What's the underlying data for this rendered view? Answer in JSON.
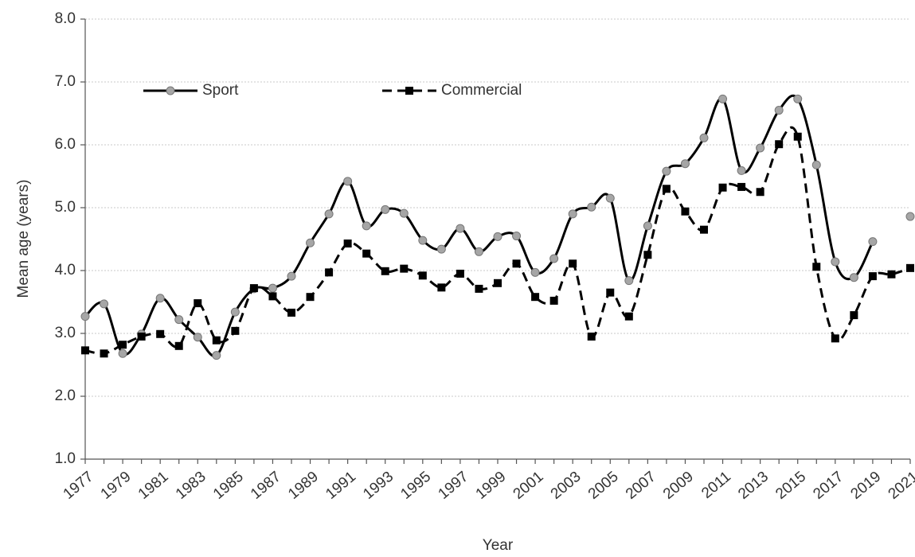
{
  "chart_data": {
    "type": "line",
    "x_label": "Year",
    "y_label": "Mean age (years)",
    "categories": [
      "1977",
      null,
      "1979",
      null,
      "1981",
      null,
      "1983",
      null,
      "1985",
      null,
      "1987",
      null,
      "1989",
      null,
      "1991",
      null,
      "1993",
      null,
      "1995",
      null,
      "1997",
      null,
      "1999",
      null,
      "2001",
      null,
      "2003",
      null,
      "2005",
      null,
      "2007",
      null,
      "2009",
      null,
      "2011",
      null,
      "2013",
      null,
      "2015",
      null,
      "2017",
      null,
      "2019",
      null,
      "2021"
    ],
    "series": [
      {
        "name": "Sport",
        "color": "#000000",
        "marker": "circle",
        "marker_color": "#a6a6a6",
        "dashed": false,
        "values": [
          3.27,
          3.47,
          2.68,
          2.99,
          3.56,
          3.22,
          2.94,
          2.65,
          3.34,
          3.71,
          3.72,
          3.91,
          4.44,
          4.9,
          5.42,
          4.71,
          4.97,
          4.91,
          4.48,
          4.34,
          4.67,
          4.3,
          4.54,
          4.55,
          3.97,
          4.19,
          4.9,
          5.01,
          5.15,
          3.84,
          4.71,
          5.58,
          5.7,
          6.11,
          6.73,
          5.59,
          5.95,
          6.55,
          6.73,
          5.68,
          4.14,
          3.89,
          4.46,
          null,
          4.86
        ]
      },
      {
        "name": "Commercial",
        "color": "#000000",
        "marker": "square",
        "marker_color": "#000000",
        "dashed": true,
        "values": [
          2.73,
          2.68,
          2.82,
          2.95,
          2.99,
          2.8,
          3.48,
          2.89,
          3.04,
          3.72,
          3.59,
          3.33,
          3.58,
          3.97,
          4.43,
          4.27,
          3.99,
          4.03,
          3.92,
          3.73,
          3.95,
          3.71,
          3.8,
          4.11,
          3.58,
          3.52,
          4.11,
          2.95,
          3.65,
          3.27,
          4.25,
          5.3,
          4.94,
          4.65,
          5.32,
          5.33,
          5.25,
          6.01,
          6.13,
          4.06,
          2.92,
          3.29,
          3.91,
          3.94,
          4.04
        ]
      }
    ],
    "ylim": [
      1,
      8
    ],
    "yticks": [
      {
        "value": 1,
        "label": "1.0"
      },
      {
        "value": 2,
        "label": "2.0"
      },
      {
        "value": 3,
        "label": "3.0"
      },
      {
        "value": 4,
        "label": "4.0"
      },
      {
        "value": 5,
        "label": "5.0"
      },
      {
        "value": 6,
        "label": "6.0"
      },
      {
        "value": 7,
        "label": "7.0"
      },
      {
        "value": 8,
        "label": "8.0"
      }
    ],
    "grid": true,
    "legend": "top-left"
  }
}
